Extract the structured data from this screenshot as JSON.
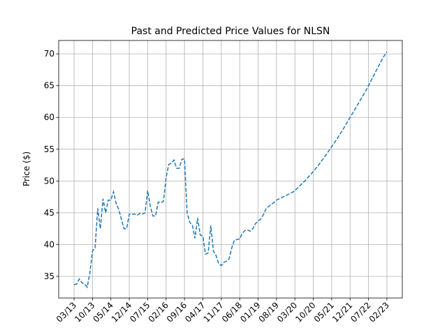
{
  "chart_data": {
    "type": "line",
    "title": "Past and Predicted Price Values for NLSN",
    "y_label": "Price ($)",
    "categories": [
      "03/13",
      null,
      null,
      null,
      null,
      null,
      null,
      "10/13",
      null,
      null,
      null,
      null,
      null,
      null,
      "05/14",
      null,
      null,
      null,
      null,
      null,
      null,
      "12/14",
      null,
      null,
      null,
      null,
      null,
      null,
      "07/15",
      null,
      null,
      null,
      null,
      null,
      null,
      "02/16",
      null,
      null,
      null,
      null,
      null,
      null,
      "09/16",
      null,
      null,
      null,
      null,
      null,
      null,
      "04/17",
      null,
      null,
      null,
      null,
      null,
      null,
      "11/17",
      null,
      null,
      null,
      null,
      null,
      null,
      "06/18",
      null,
      null,
      null,
      null,
      null,
      null,
      "01/19",
      null,
      null,
      null,
      null,
      null,
      null,
      "08/19",
      null,
      null,
      null,
      null,
      null,
      null,
      "03/20",
      null,
      null,
      null,
      null,
      null,
      null,
      "10/20",
      null,
      null,
      null,
      null,
      null,
      null,
      "05/21",
      null,
      null,
      null,
      null,
      null,
      null,
      "12/21",
      null,
      null,
      null,
      null,
      null,
      null,
      "07/22",
      null,
      null,
      null,
      null,
      null,
      null,
      "02/23"
    ],
    "values": [
      33.7,
      33.8,
      34.6,
      34.0,
      33.8,
      33.3,
      35.5,
      39.0,
      39.5,
      45.7,
      42.5,
      47.2,
      45.0,
      47.0,
      47.0,
      48.3,
      46.5,
      45.5,
      44.0,
      42.5,
      42.5,
      44.8,
      44.8,
      44.8,
      44.6,
      44.9,
      44.8,
      45.0,
      48.5,
      46.0,
      44.5,
      44.5,
      46.7,
      46.6,
      46.8,
      50.5,
      52.6,
      52.8,
      53.3,
      52.0,
      52.0,
      53.4,
      53.5,
      45.0,
      43.5,
      43.0,
      41.0,
      44.2,
      41.5,
      41.3,
      38.5,
      38.7,
      43.0,
      39.0,
      38.3,
      37.0,
      36.7,
      37.2,
      37.4,
      37.8,
      39.5,
      40.7,
      40.8,
      40.9,
      41.8,
      42.2,
      42.3,
      42.1,
      42.5,
      43.3,
      43.7,
      44.0,
      44.7,
      45.6,
      46.0,
      46.3,
      46.6,
      47.0,
      47.2,
      47.4,
      47.6,
      47.8,
      48.0,
      48.2,
      48.5,
      48.9,
      49.3,
      49.7,
      50.1,
      50.6,
      51.0,
      51.5,
      52.0,
      52.5,
      53.1,
      53.6,
      54.2,
      54.8,
      55.4,
      56.0,
      56.6,
      57.3,
      57.9,
      58.6,
      59.3,
      60.0,
      60.7,
      61.4,
      62.1,
      62.8,
      63.5,
      64.2,
      65.0,
      65.8,
      66.6,
      67.4,
      68.2,
      69.0,
      69.7,
      70.3
    ],
    "color": "#1f77b4",
    "line_style": "dashed",
    "ylim": [
      31.6,
      72.1
    ],
    "yticks": [
      35,
      40,
      45,
      50,
      55,
      60,
      65,
      70
    ],
    "grid": true
  }
}
